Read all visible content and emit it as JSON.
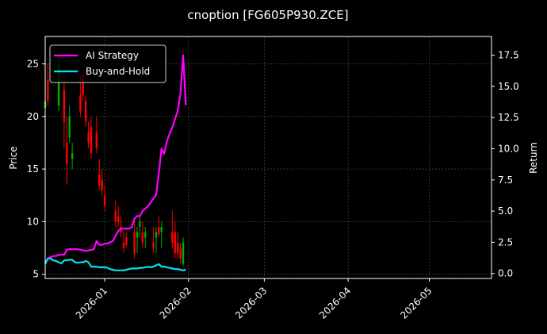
{
  "chart_data": {
    "type": "line",
    "title": "cnoption [FG605P930.ZCE]",
    "ylabel": "Price",
    "y2label": "Return",
    "ylim": [
      4.6,
      27.6
    ],
    "y2lim": [
      -0.4,
      19.0
    ],
    "xlim": [
      "2026-12-10",
      "2026-05-24"
    ],
    "x_ticks": [
      "2026-01",
      "2026-02",
      "2026-03",
      "2026-04",
      "2026-05"
    ],
    "y_ticks": [
      5,
      10,
      15,
      20,
      25
    ],
    "y2_ticks": [
      "0.0",
      "2.5",
      "5.0",
      "7.5",
      "10.0",
      "12.5",
      "15.0",
      "17.5"
    ],
    "grid": true,
    "legend_position": "top-left",
    "colors": {
      "background": "#000000",
      "ai_strategy": "#ff00ff",
      "buy_and_hold": "#00e5ee",
      "candle_up": "#00b000",
      "candle_down": "#ff0000",
      "grid": "#555555",
      "axis": "#ffffff"
    },
    "series": [
      {
        "name": "AI Strategy",
        "axis": "right",
        "x": [
          "2025-12-10",
          "2025-12-11",
          "2025-12-12",
          "2025-12-13",
          "2025-12-14",
          "2025-12-15",
          "2025-12-16",
          "2025-12-17",
          "2025-12-18",
          "2025-12-19",
          "2025-12-20",
          "2025-12-21",
          "2025-12-22",
          "2025-12-23",
          "2025-12-24",
          "2025-12-25",
          "2025-12-26",
          "2025-12-27",
          "2025-12-28",
          "2025-12-29",
          "2025-12-30",
          "2025-12-31",
          "2026-01-01",
          "2026-01-02",
          "2026-01-03",
          "2026-01-04",
          "2026-01-05",
          "2026-01-06",
          "2026-01-07",
          "2026-01-08",
          "2026-01-09",
          "2026-01-10",
          "2026-01-11",
          "2026-01-12",
          "2026-01-13",
          "2026-01-14",
          "2026-01-15",
          "2026-01-16",
          "2026-01-17",
          "2026-01-18",
          "2026-01-19",
          "2026-01-20",
          "2026-01-21",
          "2026-01-22",
          "2026-01-23",
          "2026-01-24",
          "2026-01-25",
          "2026-01-26",
          "2026-01-27",
          "2026-01-28",
          "2026-01-29",
          "2026-01-30",
          "2026-01-31"
        ],
        "values": [
          0.9,
          1.2,
          1.3,
          1.4,
          1.4,
          1.5,
          1.5,
          1.5,
          1.9,
          1.95,
          1.95,
          1.95,
          1.95,
          1.9,
          1.85,
          1.8,
          1.85,
          1.9,
          1.95,
          2.6,
          2.3,
          2.3,
          2.4,
          2.4,
          2.5,
          2.6,
          3.0,
          3.4,
          3.6,
          3.6,
          3.6,
          3.6,
          3.7,
          4.4,
          4.6,
          4.6,
          5.0,
          5.2,
          5.4,
          5.7,
          6.0,
          6.3,
          8.0,
          10.0,
          9.6,
          10.6,
          11.2,
          11.7,
          12.4,
          13.0,
          14.4,
          17.5,
          13.5
        ]
      },
      {
        "name": "Buy-and-Hold",
        "axis": "right",
        "x": [
          "2025-12-10",
          "2025-12-11",
          "2025-12-12",
          "2025-12-13",
          "2025-12-14",
          "2025-12-15",
          "2025-12-16",
          "2025-12-17",
          "2025-12-18",
          "2025-12-19",
          "2025-12-20",
          "2025-12-21",
          "2025-12-22",
          "2025-12-23",
          "2025-12-24",
          "2025-12-25",
          "2025-12-26",
          "2025-12-27",
          "2025-12-28",
          "2025-12-29",
          "2025-12-30",
          "2025-12-31",
          "2026-01-01",
          "2026-01-02",
          "2026-01-03",
          "2026-01-04",
          "2026-01-05",
          "2026-01-06",
          "2026-01-07",
          "2026-01-08",
          "2026-01-09",
          "2026-01-10",
          "2026-01-11",
          "2026-01-12",
          "2026-01-13",
          "2026-01-14",
          "2026-01-15",
          "2026-01-16",
          "2026-01-17",
          "2026-01-18",
          "2026-01-19",
          "2026-01-20",
          "2026-01-21",
          "2026-01-22",
          "2026-01-23",
          "2026-01-24",
          "2026-01-25",
          "2026-01-26",
          "2026-01-27",
          "2026-01-28",
          "2026-01-29",
          "2026-01-30",
          "2026-01-31"
        ],
        "values": [
          0.75,
          1.2,
          1.2,
          1.05,
          1.0,
          0.9,
          0.8,
          1.05,
          1.05,
          1.1,
          1.1,
          0.9,
          0.85,
          0.9,
          0.9,
          1.0,
          0.9,
          0.55,
          0.55,
          0.55,
          0.5,
          0.5,
          0.5,
          0.45,
          0.35,
          0.3,
          0.25,
          0.25,
          0.25,
          0.25,
          0.3,
          0.35,
          0.4,
          0.4,
          0.4,
          0.45,
          0.45,
          0.5,
          0.55,
          0.5,
          0.55,
          0.65,
          0.75,
          0.55,
          0.55,
          0.5,
          0.45,
          0.4,
          0.35,
          0.35,
          0.3,
          0.25,
          0.3
        ]
      }
    ],
    "candles": [
      {
        "x": "2025-12-10",
        "open": 20.8,
        "high": 22.0,
        "low": 19.5,
        "close": 21.5
      },
      {
        "x": "2025-12-11",
        "open": 23.5,
        "high": 25.0,
        "low": 21.0,
        "close": 21.5
      },
      {
        "x": "2025-12-15",
        "open": 21.0,
        "high": 26.0,
        "low": 20.5,
        "close": 25.0
      },
      {
        "x": "2025-12-17",
        "open": 22.5,
        "high": 24.0,
        "low": 17.0,
        "close": 19.5
      },
      {
        "x": "2025-12-18",
        "open": 17.5,
        "high": 20.0,
        "low": 13.5,
        "close": 15.5
      },
      {
        "x": "2025-12-19",
        "open": 18.0,
        "high": 21.0,
        "low": 17.5,
        "close": 20.0
      },
      {
        "x": "2025-12-20",
        "open": 16.0,
        "high": 17.5,
        "low": 15.0,
        "close": 16.5
      },
      {
        "x": "2025-12-23",
        "open": 22.0,
        "high": 24.0,
        "low": 20.0,
        "close": 20.5
      },
      {
        "x": "2025-12-24",
        "open": 24.0,
        "high": 24.5,
        "low": 21.5,
        "close": 22.0
      },
      {
        "x": "2025-12-25",
        "open": 21.5,
        "high": 22.0,
        "low": 19.0,
        "close": 19.5
      },
      {
        "x": "2025-12-26",
        "open": 18.5,
        "high": 19.5,
        "low": 17.0,
        "close": 17.5
      },
      {
        "x": "2025-12-27",
        "open": 19.0,
        "high": 20.0,
        "low": 16.0,
        "close": 16.5
      },
      {
        "x": "2025-12-29",
        "open": 18.5,
        "high": 20.0,
        "low": 16.5,
        "close": 17.0
      },
      {
        "x": "2025-12-30",
        "open": 14.5,
        "high": 16.0,
        "low": 13.0,
        "close": 13.5
      },
      {
        "x": "2025-12-31",
        "open": 14.0,
        "high": 15.0,
        "low": 12.5,
        "close": 13.0
      },
      {
        "x": "2026-01-01",
        "open": 12.5,
        "high": 13.5,
        "low": 11.0,
        "close": 11.5
      },
      {
        "x": "2026-01-05",
        "open": 11.0,
        "high": 12.0,
        "low": 9.5,
        "close": 10.0
      },
      {
        "x": "2026-01-06",
        "open": 10.5,
        "high": 11.5,
        "low": 9.5,
        "close": 10.0
      },
      {
        "x": "2026-01-07",
        "open": 9.5,
        "high": 10.5,
        "low": 8.5,
        "close": 9.0
      },
      {
        "x": "2026-01-08",
        "open": 8.0,
        "high": 9.0,
        "low": 7.0,
        "close": 7.5
      },
      {
        "x": "2026-01-09",
        "open": 8.5,
        "high": 9.0,
        "low": 7.5,
        "close": 7.8
      },
      {
        "x": "2026-01-12",
        "open": 9.0,
        "high": 10.0,
        "low": 6.5,
        "close": 7.0
      },
      {
        "x": "2026-01-13",
        "open": 8.5,
        "high": 9.5,
        "low": 7.0,
        "close": 9.0
      },
      {
        "x": "2026-01-14",
        "open": 9.5,
        "high": 10.5,
        "low": 8.5,
        "close": 10.0
      },
      {
        "x": "2026-01-15",
        "open": 9.0,
        "high": 10.0,
        "low": 7.5,
        "close": 8.0
      },
      {
        "x": "2026-01-16",
        "open": 8.5,
        "high": 9.5,
        "low": 7.5,
        "close": 9.0
      },
      {
        "x": "2026-01-19",
        "open": 8.0,
        "high": 9.5,
        "low": 7.0,
        "close": 7.5
      },
      {
        "x": "2026-01-20",
        "open": 8.5,
        "high": 9.5,
        "low": 7.0,
        "close": 9.0
      },
      {
        "x": "2026-01-21",
        "open": 9.5,
        "high": 10.5,
        "low": 8.5,
        "close": 8.8
      },
      {
        "x": "2026-01-22",
        "open": 9.0,
        "high": 10.0,
        "low": 7.5,
        "close": 9.5
      },
      {
        "x": "2026-01-26",
        "open": 9.0,
        "high": 11.0,
        "low": 7.5,
        "close": 8.0
      },
      {
        "x": "2026-01-27",
        "open": 9.0,
        "high": 10.0,
        "low": 6.5,
        "close": 7.0
      },
      {
        "x": "2026-01-28",
        "open": 8.0,
        "high": 9.0,
        "low": 6.5,
        "close": 7.0
      },
      {
        "x": "2026-01-29",
        "open": 7.5,
        "high": 8.0,
        "low": 6.0,
        "close": 6.5
      },
      {
        "x": "2026-01-30",
        "open": 6.0,
        "high": 8.5,
        "low": 5.8,
        "close": 8.0
      }
    ]
  }
}
